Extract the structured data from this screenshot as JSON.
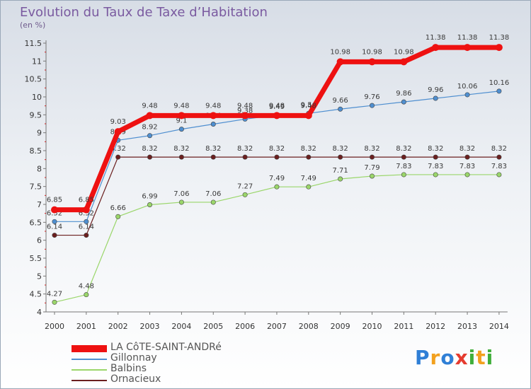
{
  "header": {
    "title": "Evolution du Taux de Taxe d’Habitation",
    "unit": "(en %)"
  },
  "brand": {
    "letters": [
      "P",
      "r",
      "o",
      "x",
      "i",
      "t",
      "i"
    ],
    "colors": [
      "#2f7fd6",
      "#f2a11f",
      "#2f7fd6",
      "#e53b2f",
      "#3fae3a",
      "#f2a11f",
      "#3fae3a"
    ]
  },
  "chart_data": {
    "type": "line",
    "title": "Evolution du Taux de Taxe d’Habitation",
    "ylabel": "(en %)",
    "xlabel": "",
    "x": [
      "2000",
      "2001",
      "2002",
      "2003",
      "2004",
      "2005",
      "2006",
      "2007",
      "2008",
      "2009",
      "2010",
      "2011",
      "2012",
      "2013",
      "2014"
    ],
    "ylim": [
      4,
      11.5
    ],
    "yticks": [
      "4",
      "4.5",
      "5",
      "5.5",
      "6",
      "6.5",
      "7",
      "7.5",
      "8",
      "8.5",
      "9",
      "9.5",
      "10",
      "10.5",
      "11",
      "11.5"
    ],
    "grid": false,
    "legend_position": "bottom-left",
    "series": [
      {
        "name": "Ornacieux",
        "color": "#6b1f1f",
        "width": 1.2,
        "values": [
          6.14,
          6.14,
          8.32,
          8.32,
          8.32,
          8.32,
          8.32,
          8.32,
          8.32,
          8.32,
          8.32,
          8.32,
          8.32,
          8.32,
          8.32
        ],
        "labels": [
          "6.14",
          "6.14",
          "8.32",
          "8.32",
          "8.32",
          "8.32",
          "8.32",
          "8.32",
          "8.32",
          "8.32",
          "8.32",
          "8.32",
          "8.32",
          "8.32",
          "8.32"
        ]
      },
      {
        "name": "Balbins",
        "color": "#9ad66a",
        "width": 1.2,
        "values": [
          4.27,
          4.48,
          6.66,
          6.99,
          7.06,
          7.06,
          7.27,
          7.49,
          7.49,
          7.71,
          7.79,
          7.83,
          7.83,
          7.83,
          7.83
        ],
        "labels": [
          "4.27",
          "4.48",
          "6.66",
          "6.99",
          "7.06",
          "7.06",
          "7.27",
          "7.49",
          "7.49",
          "7.71",
          "7.79",
          "7.83",
          "7.83",
          "7.83",
          "7.83"
        ]
      },
      {
        "name": "Gillonnay",
        "color": "#4f8fd0",
        "width": 1.2,
        "values": [
          6.52,
          6.52,
          8.79,
          8.92,
          9.1,
          9.24,
          9.38,
          9.49,
          9.54,
          9.66,
          9.76,
          9.86,
          9.96,
          10.06,
          10.16
        ],
        "labels": [
          "6.52",
          "6.52",
          "8.79",
          "8.92",
          "9.1",
          "9.24",
          "9.38",
          "9.49",
          "9.54",
          "9.66",
          "9.76",
          "9.86",
          "9.96",
          "10.06",
          "10.16"
        ]
      },
      {
        "name": "LA CôTE-SAINT-ANDRé",
        "color": "#ee1111",
        "width": 7,
        "values": [
          6.85,
          6.85,
          9.03,
          9.48,
          9.48,
          9.48,
          9.48,
          9.48,
          9.48,
          10.98,
          10.98,
          10.98,
          11.38,
          11.38,
          11.38
        ],
        "labels": [
          "6.85",
          "6.85",
          "9.03",
          "9.48",
          "9.48",
          "9.48",
          "9.48",
          "9.48",
          "9.48",
          "10.98",
          "10.98",
          "10.98",
          "11.38",
          "11.38",
          "11.38"
        ]
      }
    ],
    "legend": [
      {
        "label": "LA CôTE-SAINT-ANDRé",
        "color": "#ee1111",
        "thick": true
      },
      {
        "label": "Gillonnay",
        "color": "#4f8fd0",
        "thick": false
      },
      {
        "label": "Balbins",
        "color": "#9ad66a",
        "thick": false
      },
      {
        "label": "Ornacieux",
        "color": "#6b1f1f",
        "thick": false
      }
    ]
  }
}
